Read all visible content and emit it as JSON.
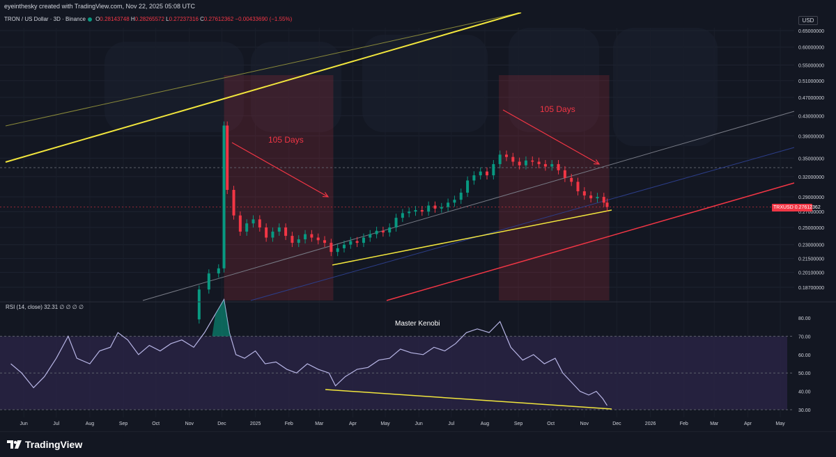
{
  "header": {
    "user": "eyeinthesky",
    "created_text": "created with TradingView.com, Nov 22, 2025 05:08 UTC",
    "symbol": "TRON / US Dollar · 3D · Binance",
    "ohlc": {
      "o_label": "O",
      "o": "0.28143748",
      "h_label": "H",
      "h": "0.28265572",
      "l_label": "L",
      "l": "0.27237316",
      "c_label": "C",
      "c": "0.27612362",
      "change": "−0.00433690 (−1.55%)"
    },
    "currency": "USD"
  },
  "annotations": {
    "days_left": "105 Days",
    "days_right": "105 Days",
    "signature": "Master Kenobi"
  },
  "price_badge": {
    "symbol": "TRXUSD",
    "price": "0.27612362"
  },
  "rsi_label": "RSI (14, close) 32.31 ∅ ∅ ∅ ∅",
  "footer": {
    "brand": "TradingView"
  },
  "colors": {
    "background": "#131722",
    "up": "#089981",
    "down": "#f23645",
    "yellow": "#f2e63d",
    "red_line": "#f23645",
    "rsi": "#b8b6e6",
    "rsi_band": "#2a2446"
  },
  "chart_data": [
    {
      "type": "candlestick",
      "title": "TRON / US Dollar · 3D · Binance",
      "y_scale": "log",
      "y_ticks": [
        "0.65000000",
        "0.60000000",
        "0.55000000",
        "0.51000000",
        "0.47000000",
        "0.43000000",
        "0.39000000",
        "0.35000000",
        "0.32000000",
        "0.29000000",
        "0.27000000",
        "0.25000000",
        "0.23000000",
        "0.21500000",
        "0.20100000",
        "0.18700000"
      ],
      "x_ticks": [
        "Jun",
        "Jul",
        "Aug",
        "Sep",
        "Oct",
        "Nov",
        "Dec",
        "2025",
        "Feb",
        "Mar",
        "Apr",
        "May",
        "Jun",
        "Jul",
        "Aug",
        "Sep",
        "Oct",
        "Nov",
        "Dec",
        "2026",
        "Feb",
        "Mar",
        "Apr",
        "May"
      ],
      "x_tick_dates": [
        "2024-06-01",
        "2024-07-01",
        "2024-08-01",
        "2024-09-01",
        "2024-10-01",
        "2024-11-01",
        "2024-12-01",
        "2025-01-01",
        "2025-02-01",
        "2025-03-01",
        "2025-04-01",
        "2025-05-01",
        "2025-06-01",
        "2025-07-01",
        "2025-08-01",
        "2025-09-01",
        "2025-10-01",
        "2025-11-01",
        "2025-12-01",
        "2026-01-01",
        "2026-02-01",
        "2026-03-01",
        "2026-04-01",
        "2026-05-01"
      ],
      "close_series": [
        [
          "2024-11-01",
          0.16
        ],
        [
          "2024-11-10",
          0.185
        ],
        [
          "2024-11-19",
          0.2
        ],
        [
          "2024-11-28",
          0.205
        ],
        [
          "2024-12-03",
          0.41
        ],
        [
          "2024-12-06",
          0.3
        ],
        [
          "2024-12-12",
          0.265
        ],
        [
          "2024-12-18",
          0.245
        ],
        [
          "2024-12-24",
          0.255
        ],
        [
          "2024-12-30",
          0.26
        ],
        [
          "2025-01-05",
          0.25
        ],
        [
          "2025-01-11",
          0.238
        ],
        [
          "2025-01-17",
          0.245
        ],
        [
          "2025-01-23",
          0.25
        ],
        [
          "2025-01-29",
          0.24
        ],
        [
          "2025-02-04",
          0.232
        ],
        [
          "2025-02-10",
          0.236
        ],
        [
          "2025-02-16",
          0.242
        ],
        [
          "2025-02-22",
          0.238
        ],
        [
          "2025-02-28",
          0.235
        ],
        [
          "2025-03-06",
          0.232
        ],
        [
          "2025-03-12",
          0.222
        ],
        [
          "2025-03-18",
          0.226
        ],
        [
          "2025-03-24",
          0.23
        ],
        [
          "2025-03-30",
          0.234
        ],
        [
          "2025-04-05",
          0.232
        ],
        [
          "2025-04-11",
          0.238
        ],
        [
          "2025-04-17",
          0.242
        ],
        [
          "2025-04-23",
          0.246
        ],
        [
          "2025-04-29",
          0.244
        ],
        [
          "2025-05-05",
          0.25
        ],
        [
          "2025-05-11",
          0.262
        ],
        [
          "2025-05-17",
          0.268
        ],
        [
          "2025-05-23",
          0.27
        ],
        [
          "2025-05-29",
          0.272
        ],
        [
          "2025-06-04",
          0.27
        ],
        [
          "2025-06-10",
          0.278
        ],
        [
          "2025-06-16",
          0.274
        ],
        [
          "2025-06-22",
          0.276
        ],
        [
          "2025-06-28",
          0.282
        ],
        [
          "2025-07-04",
          0.286
        ],
        [
          "2025-07-10",
          0.296
        ],
        [
          "2025-07-16",
          0.314
        ],
        [
          "2025-07-22",
          0.322
        ],
        [
          "2025-07-28",
          0.328
        ],
        [
          "2025-08-03",
          0.322
        ],
        [
          "2025-08-09",
          0.34
        ],
        [
          "2025-08-15",
          0.356
        ],
        [
          "2025-08-21",
          0.352
        ],
        [
          "2025-08-27",
          0.344
        ],
        [
          "2025-09-02",
          0.338
        ],
        [
          "2025-09-08",
          0.346
        ],
        [
          "2025-09-14",
          0.344
        ],
        [
          "2025-09-20",
          0.34
        ],
        [
          "2025-09-26",
          0.336
        ],
        [
          "2025-10-02",
          0.34
        ],
        [
          "2025-10-08",
          0.33
        ],
        [
          "2025-10-14",
          0.318
        ],
        [
          "2025-10-20",
          0.312
        ],
        [
          "2025-10-26",
          0.298
        ],
        [
          "2025-11-01",
          0.292
        ],
        [
          "2025-11-07",
          0.288
        ],
        [
          "2025-11-13",
          0.29
        ],
        [
          "2025-11-19",
          0.282
        ],
        [
          "2025-11-22",
          0.27612362
        ]
      ]
    },
    {
      "type": "line",
      "title": "RSI (14, close)",
      "y_ticks": [
        "80.00",
        "70.00",
        "60.00",
        "50.00",
        "40.00",
        "30.00"
      ],
      "band": [
        30,
        70
      ],
      "last_value": 32.31,
      "series": [
        [
          "2024-05-20",
          55
        ],
        [
          "2024-05-30",
          50
        ],
        [
          "2024-06-10",
          42
        ],
        [
          "2024-06-20",
          48
        ],
        [
          "2024-07-01",
          58
        ],
        [
          "2024-07-12",
          70
        ],
        [
          "2024-07-20",
          58
        ],
        [
          "2024-08-01",
          55
        ],
        [
          "2024-08-10",
          62
        ],
        [
          "2024-08-20",
          64
        ],
        [
          "2024-08-27",
          72
        ],
        [
          "2024-09-05",
          68
        ],
        [
          "2024-09-15",
          60
        ],
        [
          "2024-09-25",
          65
        ],
        [
          "2024-10-05",
          62
        ],
        [
          "2024-10-15",
          66
        ],
        [
          "2024-10-25",
          68
        ],
        [
          "2024-11-05",
          64
        ],
        [
          "2024-11-15",
          72
        ],
        [
          "2024-11-25",
          82
        ],
        [
          "2024-12-03",
          90
        ],
        [
          "2024-12-08",
          72
        ],
        [
          "2024-12-14",
          60
        ],
        [
          "2024-12-22",
          58
        ],
        [
          "2025-01-01",
          62
        ],
        [
          "2025-01-10",
          55
        ],
        [
          "2025-01-20",
          56
        ],
        [
          "2025-01-30",
          52
        ],
        [
          "2025-02-08",
          50
        ],
        [
          "2025-02-18",
          55
        ],
        [
          "2025-02-28",
          52
        ],
        [
          "2025-03-10",
          50
        ],
        [
          "2025-03-16",
          43
        ],
        [
          "2025-03-25",
          48
        ],
        [
          "2025-04-05",
          52
        ],
        [
          "2025-04-15",
          53
        ],
        [
          "2025-04-25",
          57
        ],
        [
          "2025-05-05",
          58
        ],
        [
          "2025-05-15",
          63
        ],
        [
          "2025-05-25",
          61
        ],
        [
          "2025-06-05",
          60
        ],
        [
          "2025-06-15",
          64
        ],
        [
          "2025-06-25",
          62
        ],
        [
          "2025-07-05",
          66
        ],
        [
          "2025-07-15",
          72
        ],
        [
          "2025-07-25",
          74
        ],
        [
          "2025-08-05",
          72
        ],
        [
          "2025-08-15",
          78
        ],
        [
          "2025-08-25",
          64
        ],
        [
          "2025-09-05",
          57
        ],
        [
          "2025-09-15",
          60
        ],
        [
          "2025-09-25",
          55
        ],
        [
          "2025-10-05",
          58
        ],
        [
          "2025-10-12",
          50
        ],
        [
          "2025-10-20",
          45
        ],
        [
          "2025-10-28",
          40
        ],
        [
          "2025-11-05",
          38
        ],
        [
          "2025-11-12",
          40
        ],
        [
          "2025-11-18",
          36
        ],
        [
          "2025-11-22",
          32.31
        ]
      ]
    }
  ]
}
